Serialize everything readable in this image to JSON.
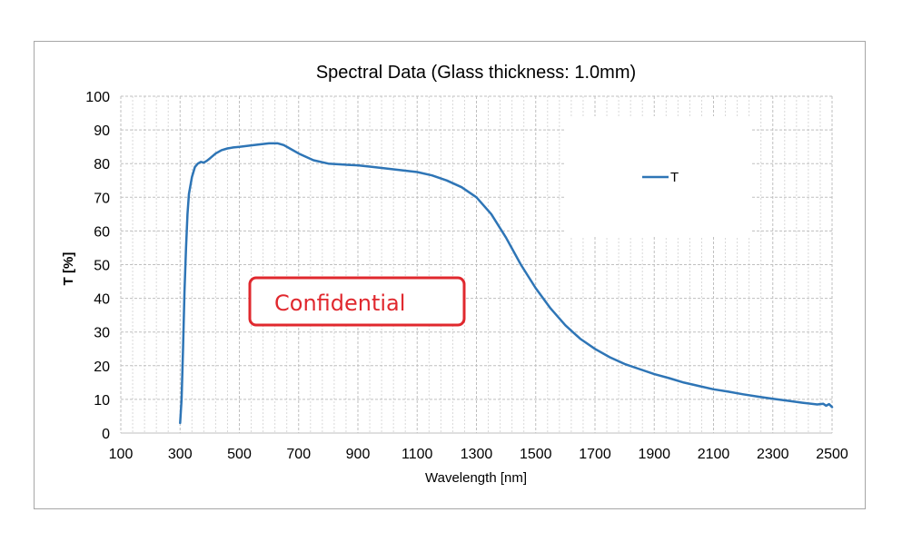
{
  "chart_data": {
    "type": "line",
    "title": "Spectral Data (Glass thickness: 1.0mm)",
    "xlabel": "Wavelength [nm]",
    "ylabel": "T [%]",
    "xlim": [
      100,
      2500
    ],
    "ylim": [
      0,
      100
    ],
    "xticks": [
      "100",
      "300",
      "500",
      "700",
      "900",
      "1100",
      "1300",
      "1500",
      "1700",
      "1900",
      "2100",
      "2300",
      "2500"
    ],
    "yticks": [
      "0",
      "10",
      "20",
      "30",
      "40",
      "50",
      "60",
      "70",
      "80",
      "90",
      "100"
    ],
    "grid": true,
    "legend_position": "top-right",
    "series": [
      {
        "name": "T",
        "color": "#2e75b6",
        "x": [
          300,
          305,
          310,
          315,
          320,
          325,
          330,
          340,
          350,
          360,
          370,
          380,
          390,
          400,
          420,
          440,
          460,
          480,
          500,
          550,
          600,
          630,
          650,
          670,
          700,
          750,
          800,
          850,
          900,
          950,
          1000,
          1050,
          1100,
          1150,
          1200,
          1250,
          1300,
          1350,
          1400,
          1450,
          1500,
          1550,
          1600,
          1650,
          1700,
          1750,
          1800,
          1850,
          1900,
          1950,
          2000,
          2050,
          2100,
          2150,
          2200,
          2250,
          2300,
          2350,
          2400,
          2450,
          2470,
          2480,
          2490,
          2500
        ],
        "values": [
          3,
          10,
          25,
          42,
          55,
          65,
          71,
          76,
          79,
          80,
          80.5,
          80.3,
          80.8,
          81.5,
          83,
          84,
          84.5,
          84.8,
          85,
          85.5,
          86,
          86,
          85.5,
          84.5,
          83,
          81,
          80,
          79.7,
          79.5,
          79,
          78.5,
          78,
          77.5,
          76.5,
          75,
          73,
          70,
          65,
          58,
          50,
          43,
          37,
          32,
          28,
          25,
          22.5,
          20.5,
          19,
          17.5,
          16.3,
          15,
          14,
          13,
          12.3,
          11.5,
          10.8,
          10.2,
          9.6,
          9,
          8.5,
          8.7,
          8.1,
          8.6,
          7.7
        ]
      }
    ]
  },
  "watermark": {
    "text": "Confidential",
    "color": "#e0282e"
  }
}
